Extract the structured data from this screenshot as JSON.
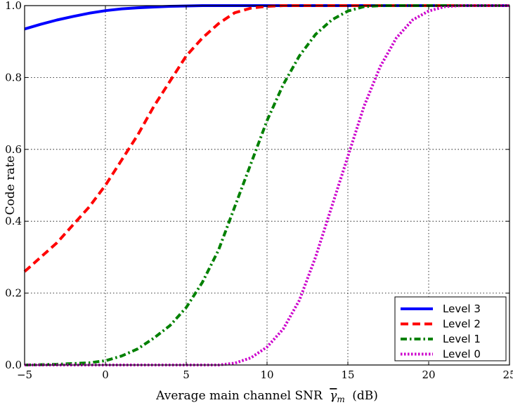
{
  "chart_data": {
    "type": "line",
    "xlabel": "Average main channel SNR",
    "xlabel_symbol": "γ",
    "xlabel_subscript": "m",
    "xlabel_unit": "(dB)",
    "ylabel": "Code rate",
    "xlim": [
      -5,
      25
    ],
    "ylim": [
      0,
      1
    ],
    "x_ticks": [
      -5,
      0,
      5,
      10,
      15,
      20,
      25
    ],
    "y_ticks": [
      0.0,
      0.2,
      0.4,
      0.6,
      0.8,
      1.0
    ],
    "x_tick_labels": [
      "−5",
      "0",
      "5",
      "10",
      "15",
      "20",
      "25"
    ],
    "y_tick_labels": [
      "0.0",
      "0.2",
      "0.4",
      "0.6",
      "0.8",
      "1.0"
    ],
    "grid": true,
    "legend_position": "bottom-right",
    "series": [
      {
        "name": "Level 3",
        "color": "#0000ff",
        "dash": "solid",
        "x": [
          -5,
          -4,
          -3,
          -2,
          -1,
          0,
          1,
          2,
          3,
          4,
          5,
          6,
          8,
          10,
          15,
          20,
          25
        ],
        "y": [
          0.935,
          0.948,
          0.96,
          0.97,
          0.979,
          0.986,
          0.991,
          0.994,
          0.996,
          0.998,
          0.999,
          1.0,
          1.0,
          1.0,
          1.0,
          1.0,
          1.0
        ]
      },
      {
        "name": "Level 2",
        "color": "#ff0000",
        "dash": "dashed",
        "x": [
          -5,
          -4,
          -3,
          -2,
          -1,
          0,
          1,
          2,
          3,
          4,
          5,
          6,
          7,
          8,
          9,
          10,
          11,
          12,
          15,
          20,
          25
        ],
        "y": [
          0.26,
          0.3,
          0.34,
          0.39,
          0.44,
          0.5,
          0.57,
          0.64,
          0.72,
          0.79,
          0.86,
          0.91,
          0.95,
          0.98,
          0.993,
          0.998,
          1.0,
          1.0,
          1.0,
          1.0,
          1.0
        ]
      },
      {
        "name": "Level 1",
        "color": "#008000",
        "dash": "dashdot",
        "x": [
          -5,
          -3,
          -1,
          0,
          1,
          2,
          3,
          4,
          5,
          6,
          7,
          8,
          9,
          10,
          11,
          12,
          13,
          14,
          15,
          16,
          17,
          20,
          25
        ],
        "y": [
          0.0,
          0.002,
          0.006,
          0.012,
          0.025,
          0.045,
          0.075,
          0.11,
          0.16,
          0.23,
          0.32,
          0.44,
          0.56,
          0.68,
          0.78,
          0.86,
          0.92,
          0.96,
          0.985,
          0.997,
          1.0,
          1.0,
          1.0
        ]
      },
      {
        "name": "Level 0",
        "color": "#cc00cc",
        "dash": "dotted",
        "x": [
          -5,
          0,
          5,
          7,
          8,
          9,
          10,
          11,
          12,
          13,
          14,
          15,
          16,
          17,
          18,
          19,
          20,
          21,
          22,
          25
        ],
        "y": [
          0.0,
          0.0,
          0.0,
          0.0,
          0.005,
          0.02,
          0.05,
          0.1,
          0.18,
          0.3,
          0.44,
          0.58,
          0.72,
          0.83,
          0.91,
          0.96,
          0.985,
          0.997,
          1.0,
          1.0
        ]
      }
    ]
  }
}
